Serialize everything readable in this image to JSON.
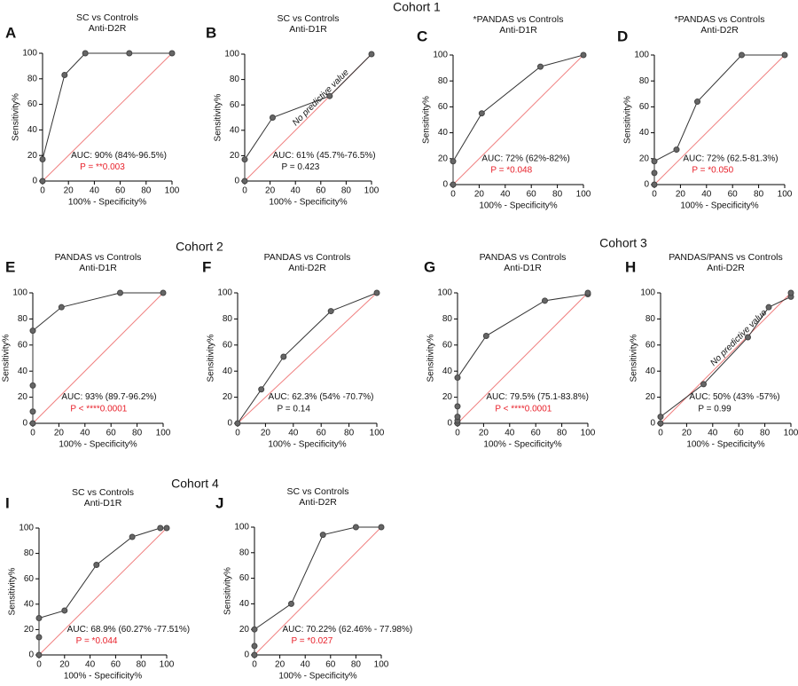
{
  "cohort_labels": [
    "Cohort 1",
    "Cohort 2",
    "Cohort 3",
    "Cohort 4"
  ],
  "chart_data": [
    {
      "type": "line",
      "panel": "A",
      "title": "SC vs Controls",
      "subtitle": "Anti-D2R",
      "x_label": "100% - Specificity%",
      "y_label": "Sensitivity%",
      "x": [
        0,
        0,
        17,
        33,
        67,
        100
      ],
      "values": [
        0,
        17,
        83,
        100,
        100,
        100
      ],
      "color": "#333333",
      "diagonal_color": "#f08080",
      "xlim": [
        0,
        100
      ],
      "ylim": [
        0,
        100
      ],
      "xticks": [
        0,
        20,
        40,
        60,
        80,
        100
      ],
      "yticks": [
        0,
        20,
        40,
        60,
        80,
        100
      ],
      "auc_text": "AUC: 90% (84%-96.5%)",
      "p_text": "P = **0.003",
      "p_color": "#e8202a"
    },
    {
      "type": "line",
      "panel": "B",
      "title": "SC vs Controls",
      "subtitle": "Anti-D1R",
      "x_label": "100% - Specificity%",
      "y_label": "Sensitivity%",
      "x": [
        0,
        0,
        22,
        67,
        100
      ],
      "values": [
        0,
        17,
        50,
        67,
        100
      ],
      "color": "#333333",
      "diagonal_color": "#f08080",
      "xlim": [
        0,
        100
      ],
      "ylim": [
        0,
        100
      ],
      "xticks": [
        0,
        20,
        40,
        60,
        80,
        100
      ],
      "yticks": [
        0,
        20,
        40,
        60,
        80,
        100
      ],
      "auc_text": "AUC: 61% (45.7%-76.5%)",
      "p_text": "P = 0.423",
      "p_color": "#111111",
      "annotation": "No predictive value"
    },
    {
      "type": "line",
      "panel": "C",
      "title": "*PANDAS vs Controls",
      "subtitle": "Anti-D1R",
      "x_label": "100% - Specificity%",
      "y_label": "Sensitivity%",
      "x": [
        0,
        0,
        22,
        67,
        100
      ],
      "values": [
        0,
        18,
        55,
        91,
        100
      ],
      "color": "#333333",
      "diagonal_color": "#f08080",
      "xlim": [
        0,
        100
      ],
      "ylim": [
        0,
        100
      ],
      "xticks": [
        0,
        20,
        40,
        60,
        80,
        100
      ],
      "yticks": [
        0,
        20,
        40,
        60,
        80,
        100
      ],
      "auc_text": "AUC: 72% (62%-82%)",
      "p_text": "P = *0.048",
      "p_color": "#e8202a"
    },
    {
      "type": "line",
      "panel": "D",
      "title": "*PANDAS vs Controls",
      "subtitle": "Anti-D2R",
      "x_label": "100% - Specificity%",
      "y_label": "Sensitivity%",
      "x": [
        0,
        0,
        0,
        17,
        33,
        67,
        100
      ],
      "values": [
        0,
        9,
        18,
        27,
        64,
        100,
        100
      ],
      "color": "#333333",
      "diagonal_color": "#f08080",
      "xlim": [
        0,
        100
      ],
      "ylim": [
        0,
        100
      ],
      "xticks": [
        0,
        20,
        40,
        60,
        80,
        100
      ],
      "yticks": [
        0,
        20,
        40,
        60,
        80,
        100
      ],
      "auc_text": "AUC: 72% (62.5-81.3%)",
      "p_text": "P = *0.050",
      "p_color": "#e8202a"
    },
    {
      "type": "line",
      "panel": "E",
      "title": "PANDAS vs Controls",
      "subtitle": "Anti-D1R",
      "x_label": "100% - Specificity%",
      "y_label": "Sensitivity%",
      "x": [
        0,
        0,
        0,
        0,
        22,
        67,
        100
      ],
      "values": [
        0,
        9,
        29,
        71,
        89,
        100,
        100
      ],
      "color": "#333333",
      "diagonal_color": "#f08080",
      "xlim": [
        0,
        100
      ],
      "ylim": [
        0,
        100
      ],
      "xticks": [
        0,
        20,
        40,
        60,
        80,
        100
      ],
      "yticks": [
        0,
        20,
        40,
        60,
        80,
        100
      ],
      "auc_text": "AUC: 93% (89.7-96.2%)",
      "p_text": "P < ****0.0001",
      "p_color": "#e8202a"
    },
    {
      "type": "line",
      "panel": "F",
      "title": "PANDAS vs Controls",
      "subtitle": "Anti-D2R",
      "x_label": "100% - Specificity%",
      "y_label": "Sensitivity%",
      "x": [
        0,
        17,
        33,
        67,
        100
      ],
      "values": [
        0,
        26,
        51,
        86,
        100
      ],
      "color": "#333333",
      "diagonal_color": "#f08080",
      "xlim": [
        0,
        100
      ],
      "ylim": [
        0,
        100
      ],
      "xticks": [
        0,
        20,
        40,
        60,
        80,
        100
      ],
      "yticks": [
        0,
        20,
        40,
        60,
        80,
        100
      ],
      "auc_text": "AUC: 62.3% (54% -70.7%)",
      "p_text": "P = 0.14",
      "p_color": "#111111"
    },
    {
      "type": "line",
      "panel": "G",
      "title": "PANDAS vs Controls",
      "subtitle": "Anti-D1R",
      "x_label": "100% - Specificity%",
      "y_label": "Sensitivity%",
      "x": [
        0,
        0,
        0,
        0,
        0,
        22,
        67,
        100,
        100
      ],
      "values": [
        0,
        2,
        5,
        13,
        35,
        67,
        94,
        99,
        100
      ],
      "color": "#333333",
      "diagonal_color": "#f08080",
      "xlim": [
        0,
        100
      ],
      "ylim": [
        0,
        100
      ],
      "xticks": [
        0,
        20,
        40,
        60,
        80,
        100
      ],
      "yticks": [
        0,
        20,
        40,
        60,
        80,
        100
      ],
      "auc_text": "AUC: 79.5% (75.1-83.8%)",
      "p_text": "P < ****0.0001",
      "p_color": "#e8202a"
    },
    {
      "type": "line",
      "panel": "H",
      "title": "PANDAS/PANS vs Controls",
      "subtitle": "Anti-D2R",
      "x_label": "100% - Specificity%",
      "y_label": "Sensitivity%",
      "x": [
        0,
        0,
        33,
        67,
        83,
        100,
        100
      ],
      "values": [
        0,
        5,
        30,
        66,
        89,
        97,
        100
      ],
      "color": "#333333",
      "diagonal_color": "#f08080",
      "xlim": [
        0,
        100
      ],
      "ylim": [
        0,
        100
      ],
      "xticks": [
        0,
        20,
        40,
        60,
        80,
        100
      ],
      "yticks": [
        0,
        20,
        40,
        60,
        80,
        100
      ],
      "auc_text": "AUC: 50% (43% -57%)",
      "p_text": "P = 0.99",
      "p_color": "#111111",
      "annotation": "No predictive value"
    },
    {
      "type": "line",
      "panel": "I",
      "title": "SC vs Controls",
      "subtitle": "Anti-D1R",
      "x_label": "100% - Specificity%",
      "y_label": "Sensitivity%",
      "x": [
        0,
        0,
        0,
        20,
        45,
        73,
        95,
        100
      ],
      "values": [
        0,
        14,
        29,
        35,
        71,
        93,
        100,
        100
      ],
      "color": "#333333",
      "diagonal_color": "#f08080",
      "xlim": [
        0,
        100
      ],
      "ylim": [
        0,
        100
      ],
      "xticks": [
        0,
        20,
        40,
        60,
        80,
        100
      ],
      "yticks": [
        0,
        20,
        40,
        60,
        80,
        100
      ],
      "auc_text": "AUC: 68.9% (60.27% -77.51%)",
      "p_text": "P = *0.044",
      "p_color": "#e8202a"
    },
    {
      "type": "line",
      "panel": "J",
      "title": "SC vs Controls",
      "subtitle": "Anti-D2R",
      "x_label": "100% - Specificity%",
      "y_label": "Sensitivity%",
      "x": [
        0,
        0,
        0,
        29,
        54,
        80,
        100
      ],
      "values": [
        0,
        7,
        20,
        40,
        94,
        100,
        100
      ],
      "color": "#333333",
      "diagonal_color": "#f08080",
      "xlim": [
        0,
        100
      ],
      "ylim": [
        0,
        100
      ],
      "xticks": [
        0,
        20,
        40,
        60,
        80,
        100
      ],
      "yticks": [
        0,
        20,
        40,
        60,
        80,
        100
      ],
      "auc_text": "AUC: 70.22% (62.46% - 77.98%)",
      "p_text": "P = *0.027",
      "p_color": "#e8202a"
    }
  ]
}
